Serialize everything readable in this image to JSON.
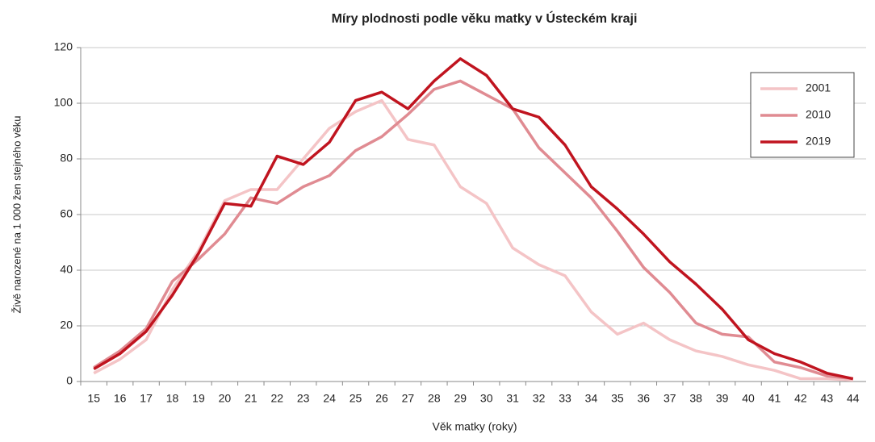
{
  "chart_data": {
    "type": "line",
    "title": "Míry plodnosti  podle věku matky v Ústeckém kraji",
    "x_label": "Věk matky  (roky)",
    "y_label": "Živě narozené na 1 000 žen stejného věku",
    "categories": [
      "15",
      "16",
      "17",
      "18",
      "19",
      "20",
      "21",
      "22",
      "23",
      "24",
      "25",
      "26",
      "27",
      "28",
      "29",
      "30",
      "31",
      "32",
      "33",
      "34",
      "35",
      "36",
      "37",
      "38",
      "39",
      "40",
      "41",
      "42",
      "43",
      "44"
    ],
    "series": [
      {
        "name": "2001",
        "color": "#f4c4c6",
        "values": [
          3,
          8,
          15,
          33,
          47,
          65,
          69,
          69,
          80,
          91,
          97,
          101,
          87,
          85,
          70,
          64,
          48,
          42,
          38,
          25,
          17,
          21,
          15,
          11,
          9,
          6,
          4,
          1,
          1,
          0.5
        ]
      },
      {
        "name": "2010",
        "color": "#e08b92",
        "values": [
          5,
          11,
          19,
          36,
          44,
          53,
          66,
          64,
          70,
          74,
          83,
          88,
          96,
          105,
          108,
          103,
          98,
          84,
          75,
          66,
          54,
          41,
          32,
          21,
          17,
          16,
          7,
          5,
          2,
          1
        ]
      },
      {
        "name": "2019",
        "color": "#c0141f",
        "values": [
          4.5,
          10,
          18,
          31,
          46,
          64,
          63,
          81,
          78,
          86,
          101,
          104,
          98,
          108,
          116,
          110,
          98,
          95,
          85,
          70,
          62,
          53,
          43,
          35,
          26,
          15,
          10,
          7,
          3,
          1
        ]
      }
    ],
    "ylim": [
      0,
      120
    ],
    "yticks": [
      0,
      20,
      40,
      60,
      80,
      100,
      120
    ],
    "grid": true,
    "legend": "top-right"
  }
}
